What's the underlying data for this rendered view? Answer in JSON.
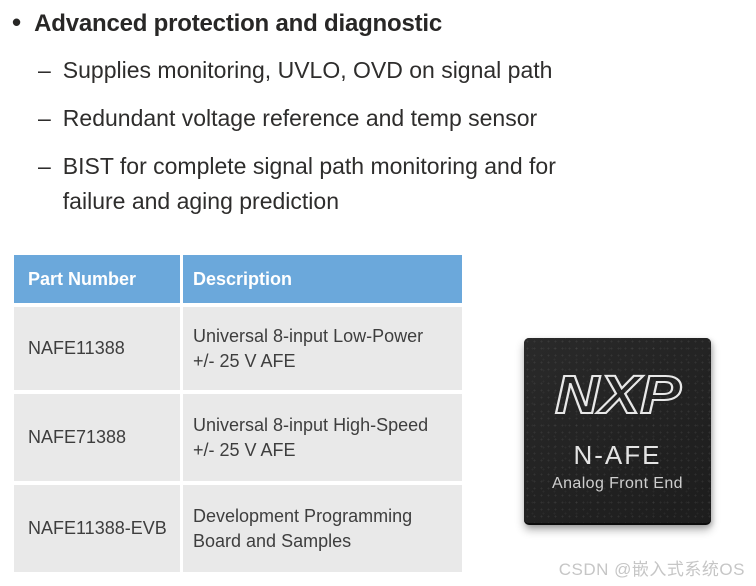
{
  "bullets": {
    "title_bullet": "•",
    "title": "Advanced protection and diagnostic",
    "items": [
      {
        "dash": "–",
        "lines": [
          "Supplies monitoring, UVLO, OVD on signal path"
        ]
      },
      {
        "dash": "–",
        "lines": [
          "Redundant voltage reference and temp sensor"
        ]
      },
      {
        "dash": "–",
        "lines": [
          "BIST for complete signal path monitoring and for",
          "failure and aging prediction"
        ]
      }
    ]
  },
  "table": {
    "headers": [
      "Part Number",
      "Description"
    ],
    "rows": [
      {
        "part": "NAFE11388",
        "desc": [
          "Universal 8-input Low-Power",
          "+/- 25 V AFE"
        ]
      },
      {
        "part": "NAFE71388",
        "desc": [
          "Universal 8-input High-Speed",
          "+/- 25 V AFE"
        ]
      },
      {
        "part": "NAFE11388-EVB",
        "desc": [
          "Development Programming",
          "Board and Samples"
        ]
      }
    ],
    "colors": {
      "header_bg": "#6BA8DB",
      "header_text": "#FFFFFF",
      "row_bg": "#E9E9E9",
      "cell_text": "#3E3E3E"
    }
  },
  "chip": {
    "logo": "NXP",
    "name": "N-AFE",
    "subtitle": "Analog Front End",
    "body_color": "#242424",
    "print_color": "#E8E8E8"
  },
  "watermark": "CSDN @嵌入式系统OS"
}
